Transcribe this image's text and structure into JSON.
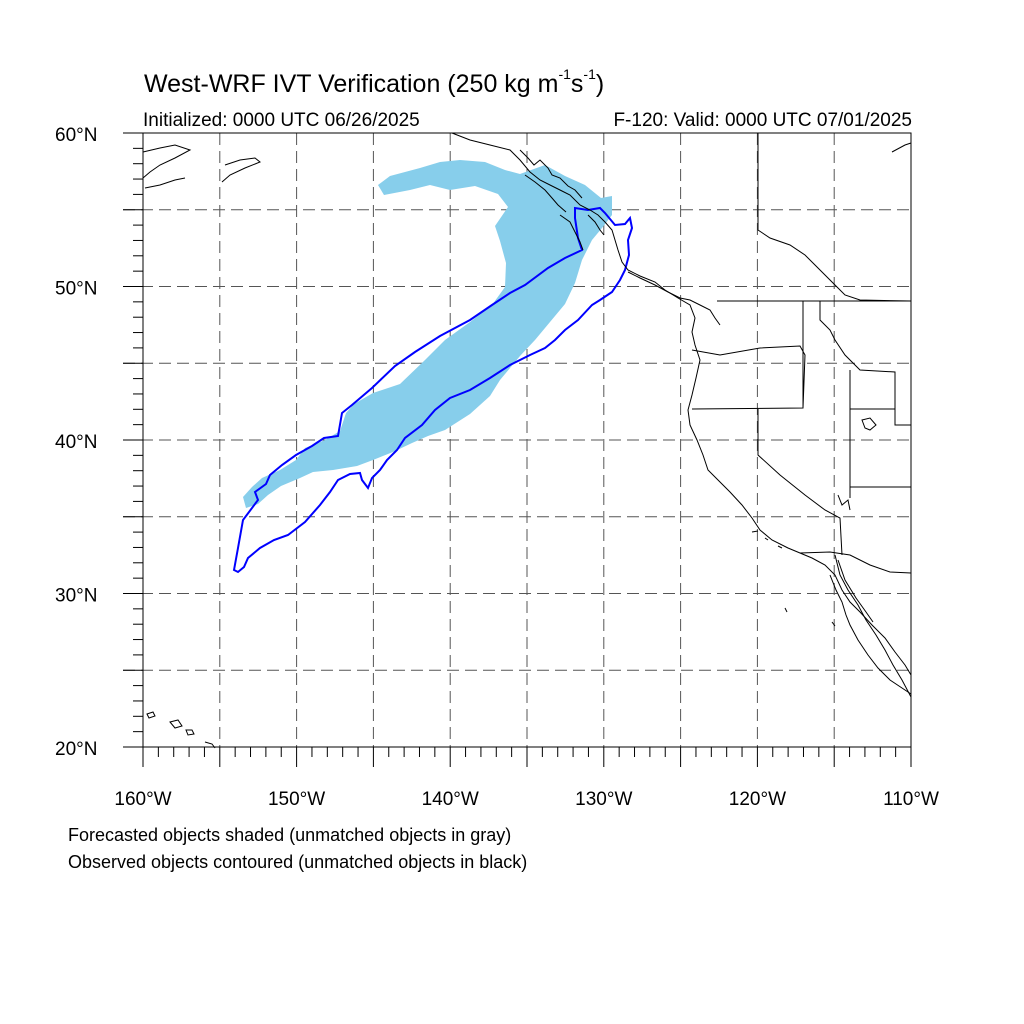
{
  "title": {
    "text": "West-WRF IVT Verification (250 kg m",
    "sup1": "-1",
    "mid": "s",
    "sup2": "-1",
    "end": ")"
  },
  "subtitle_left": "Initialized: 0000 UTC 06/26/2025",
  "subtitle_right": "F-120: Valid: 0000 UTC 07/01/2025",
  "notes": [
    "Forecasted objects shaded (unmatched objects in gray)",
    "Observed objects contoured (unmatched objects in black)"
  ],
  "map": {
    "lon_range": [
      -160,
      -110
    ],
    "lat_range": [
      20,
      60
    ],
    "lat_labels": [
      {
        "lat": 60,
        "text": "60°N"
      },
      {
        "lat": 50,
        "text": "50°N"
      },
      {
        "lat": 40,
        "text": "40°N"
      },
      {
        "lat": 30,
        "text": "30°N"
      },
      {
        "lat": 20,
        "text": "20°N"
      }
    ],
    "lon_labels": [
      {
        "lon": -160,
        "text": "160°W"
      },
      {
        "lon": -150,
        "text": "150°W"
      },
      {
        "lon": -140,
        "text": "140°W"
      },
      {
        "lon": -130,
        "text": "130°W"
      },
      {
        "lon": -120,
        "text": "120°W"
      },
      {
        "lon": -110,
        "text": "110°W"
      }
    ],
    "grid_lons": [
      -155,
      -150,
      -145,
      -140,
      -135,
      -130,
      -125,
      -120,
      -115
    ],
    "grid_lats": [
      55,
      50,
      45,
      40,
      35,
      30,
      25
    ],
    "forecast_fill_color": "#87ceeb",
    "observed_contour_color": "#0000ff",
    "coastline_color": "#000000"
  }
}
